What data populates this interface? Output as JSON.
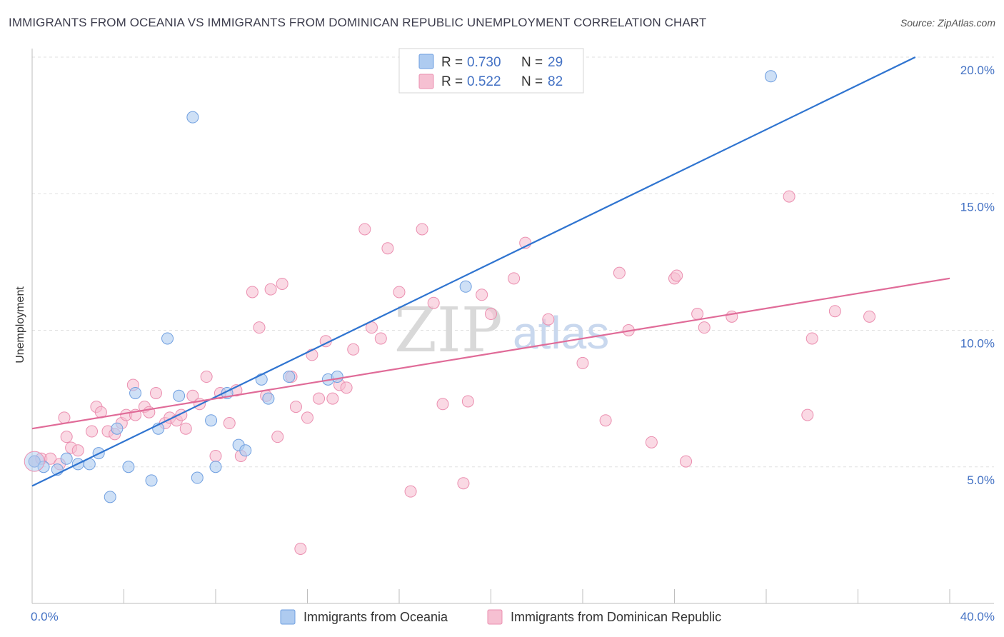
{
  "header": {
    "title": "IMMIGRANTS FROM OCEANIA VS IMMIGRANTS FROM DOMINICAN REPUBLIC UNEMPLOYMENT CORRELATION CHART",
    "source": "Source: ZipAtlas.com"
  },
  "watermark": {
    "zip": "ZIP",
    "atlas": "atlas"
  },
  "colors": {
    "oceania_fill": "#aecbf0",
    "oceania_stroke": "#6f9fe0",
    "oceania_line": "#2f74d0",
    "dominican_fill": "#f6c0d2",
    "dominican_stroke": "#eb8fb0",
    "dominican_line": "#e06b98",
    "tick_text": "#4472c4",
    "grid": "#e0e0e0"
  },
  "legend": {
    "rows": [
      {
        "r_label": "R =",
        "r_value": "0.730",
        "n_label": "N =",
        "n_value": "29"
      },
      {
        "r_label": "R =",
        "r_value": "0.522",
        "n_label": "N =",
        "n_value": "82"
      }
    ]
  },
  "bottom_legend": {
    "items": [
      {
        "label": "Immigrants from Oceania"
      },
      {
        "label": "Immigrants from Dominican Republic"
      }
    ]
  },
  "chart_data": {
    "type": "scatter",
    "ylabel": "Unemployment",
    "xlabel": "",
    "xlim": [
      0,
      40
    ],
    "ylim": [
      0,
      20
    ],
    "x_tick_labels": [
      "0.0%",
      "40.0%"
    ],
    "y_ticks": [
      5,
      10,
      15,
      20
    ],
    "y_tick_labels": [
      "5.0%",
      "10.0%",
      "15.0%",
      "20.0%"
    ],
    "grid": true,
    "legend_position": "top-center",
    "series": [
      {
        "name": "Immigrants from Oceania",
        "r": 0.73,
        "n": 29,
        "trend": [
          [
            0,
            4.3
          ],
          [
            38.5,
            20.0
          ]
        ],
        "points": [
          [
            0.1,
            5.2
          ],
          [
            0.5,
            5.0
          ],
          [
            1.1,
            4.9
          ],
          [
            1.5,
            5.3
          ],
          [
            2.0,
            5.1
          ],
          [
            2.5,
            5.1
          ],
          [
            2.9,
            5.5
          ],
          [
            3.4,
            3.9
          ],
          [
            3.7,
            6.4
          ],
          [
            4.2,
            5.0
          ],
          [
            4.5,
            7.7
          ],
          [
            5.2,
            4.5
          ],
          [
            5.5,
            6.4
          ],
          [
            5.9,
            9.7
          ],
          [
            6.4,
            7.6
          ],
          [
            7.0,
            17.8
          ],
          [
            7.2,
            4.6
          ],
          [
            7.8,
            6.7
          ],
          [
            8.0,
            5.0
          ],
          [
            8.5,
            7.7
          ],
          [
            9.0,
            5.8
          ],
          [
            9.3,
            5.6
          ],
          [
            10.0,
            8.2
          ],
          [
            10.3,
            7.5
          ],
          [
            11.2,
            8.3
          ],
          [
            12.9,
            8.2
          ],
          [
            13.3,
            8.3
          ],
          [
            18.9,
            11.6
          ],
          [
            32.2,
            19.3
          ]
        ]
      },
      {
        "name": "Immigrants from Dominican Republic",
        "r": 0.522,
        "n": 82,
        "trend": [
          [
            0,
            6.4
          ],
          [
            40,
            11.9
          ]
        ],
        "points": [
          [
            0.1,
            5.2
          ],
          [
            0.4,
            5.3
          ],
          [
            0.8,
            5.3
          ],
          [
            1.2,
            5.1
          ],
          [
            1.4,
            6.8
          ],
          [
            1.5,
            6.1
          ],
          [
            1.7,
            5.7
          ],
          [
            2.0,
            5.6
          ],
          [
            2.6,
            6.3
          ],
          [
            2.8,
            7.2
          ],
          [
            3.0,
            7.0
          ],
          [
            3.3,
            6.3
          ],
          [
            3.6,
            6.2
          ],
          [
            3.9,
            6.6
          ],
          [
            4.1,
            6.9
          ],
          [
            4.4,
            8.0
          ],
          [
            4.5,
            6.9
          ],
          [
            4.9,
            7.2
          ],
          [
            5.1,
            7.0
          ],
          [
            5.4,
            7.7
          ],
          [
            5.8,
            6.6
          ],
          [
            6.0,
            6.8
          ],
          [
            6.3,
            6.7
          ],
          [
            6.5,
            6.9
          ],
          [
            6.7,
            6.4
          ],
          [
            7.0,
            7.6
          ],
          [
            7.3,
            7.3
          ],
          [
            7.6,
            8.3
          ],
          [
            8.0,
            5.4
          ],
          [
            8.2,
            7.7
          ],
          [
            8.6,
            6.6
          ],
          [
            8.9,
            7.8
          ],
          [
            9.1,
            5.4
          ],
          [
            9.6,
            11.4
          ],
          [
            9.9,
            10.1
          ],
          [
            10.2,
            7.6
          ],
          [
            10.4,
            11.5
          ],
          [
            10.7,
            6.1
          ],
          [
            10.9,
            11.7
          ],
          [
            11.3,
            8.3
          ],
          [
            11.5,
            7.2
          ],
          [
            11.7,
            2.0
          ],
          [
            12.0,
            6.8
          ],
          [
            12.2,
            9.1
          ],
          [
            12.5,
            7.5
          ],
          [
            12.8,
            9.6
          ],
          [
            13.1,
            7.5
          ],
          [
            13.4,
            8.0
          ],
          [
            13.7,
            7.9
          ],
          [
            14.0,
            9.3
          ],
          [
            14.5,
            13.7
          ],
          [
            14.8,
            10.1
          ],
          [
            15.2,
            9.7
          ],
          [
            15.5,
            13.0
          ],
          [
            16.0,
            11.4
          ],
          [
            16.5,
            4.1
          ],
          [
            17.0,
            13.7
          ],
          [
            17.5,
            11.0
          ],
          [
            17.9,
            7.3
          ],
          [
            19.0,
            7.4
          ],
          [
            18.8,
            4.4
          ],
          [
            19.6,
            11.3
          ],
          [
            20.0,
            10.6
          ],
          [
            21.0,
            11.9
          ],
          [
            21.5,
            13.2
          ],
          [
            22.5,
            10.4
          ],
          [
            24.0,
            8.8
          ],
          [
            25.0,
            6.7
          ],
          [
            25.6,
            12.1
          ],
          [
            26.0,
            10.0
          ],
          [
            27.0,
            5.9
          ],
          [
            28.0,
            11.9
          ],
          [
            28.5,
            5.2
          ],
          [
            29.0,
            10.6
          ],
          [
            29.3,
            10.1
          ],
          [
            30.5,
            10.5
          ],
          [
            33.0,
            14.9
          ],
          [
            33.8,
            6.9
          ],
          [
            34.0,
            9.7
          ],
          [
            35.0,
            10.7
          ],
          [
            36.5,
            10.5
          ],
          [
            28.1,
            12.0
          ]
        ]
      }
    ]
  }
}
